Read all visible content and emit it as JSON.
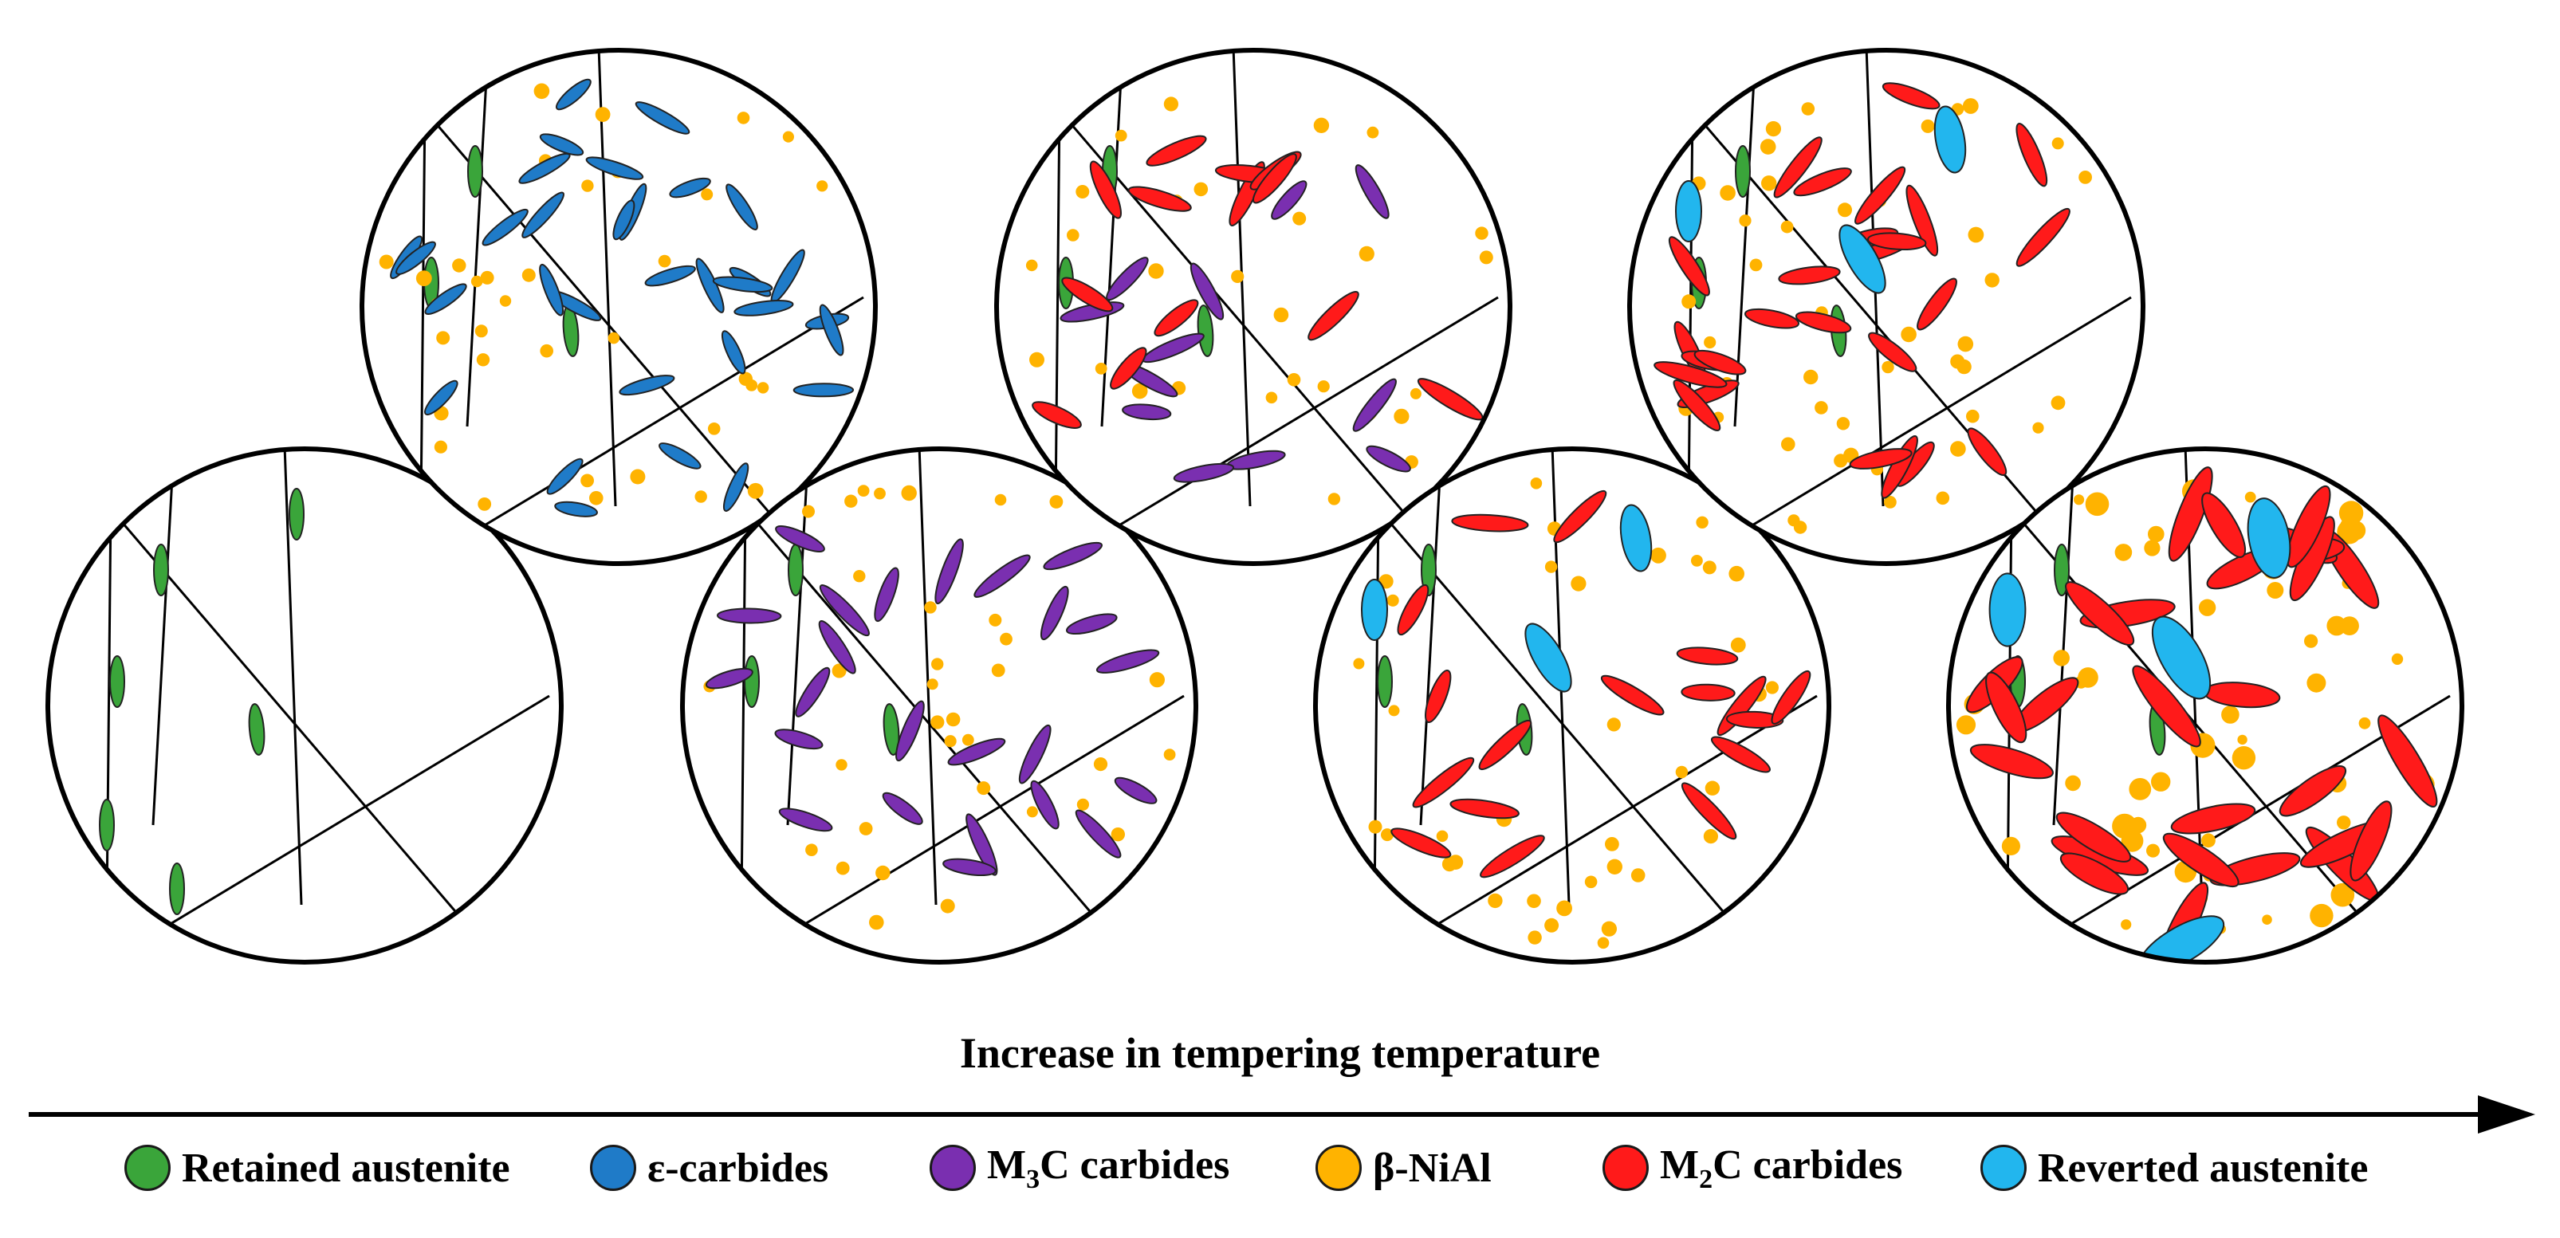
{
  "axis": {
    "label": "Increase in tempering temperature"
  },
  "legend": [
    {
      "key": "retained",
      "name": "Retained austenite",
      "color": "#3aa53a"
    },
    {
      "key": "epsilon",
      "name": "ε-carbides",
      "color": "#1f7bc8"
    },
    {
      "key": "m3c",
      "name": "M3C carbides",
      "prefix": "M",
      "sub": "3",
      "suffix": "C carbides",
      "color": "#7a2fb0"
    },
    {
      "key": "nial",
      "name": "β-NiAl",
      "color": "#ffb300"
    },
    {
      "key": "m2c",
      "name": "M2C carbides",
      "prefix": "M",
      "sub": "2",
      "suffix": "C carbides",
      "color": "#ff1a1a"
    },
    {
      "key": "reverted",
      "name": "Reverted austenite",
      "color": "#22b6ee"
    }
  ],
  "stages": [
    {
      "stage": 1,
      "contains": [
        "retained"
      ]
    },
    {
      "stage": 2,
      "contains": [
        "retained",
        "epsilon",
        "nial"
      ]
    },
    {
      "stage": 3,
      "contains": [
        "retained",
        "m3c",
        "nial"
      ]
    },
    {
      "stage": 4,
      "contains": [
        "retained",
        "m3c",
        "nial",
        "m2c"
      ]
    },
    {
      "stage": 5,
      "contains": [
        "retained",
        "nial",
        "m2c",
        "reverted"
      ]
    },
    {
      "stage": 6,
      "contains": [
        "retained",
        "nial",
        "m2c",
        "reverted"
      ]
    },
    {
      "stage": 7,
      "contains": [
        "retained",
        "nial",
        "m2c",
        "reverted"
      ]
    }
  ]
}
